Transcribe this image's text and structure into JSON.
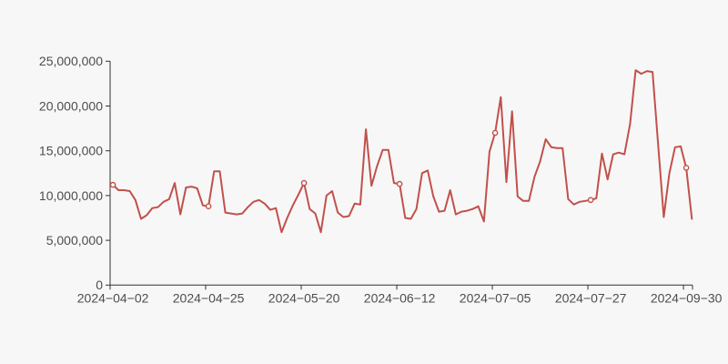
{
  "page": {
    "background_color": "#f7f7f7"
  },
  "chart_data": {
    "type": "line",
    "title": "",
    "xlabel": "",
    "ylabel": "",
    "legend": false,
    "grid": false,
    "ylim": [
      0,
      25000000
    ],
    "y_ticks": [
      0,
      5000000,
      10000000,
      15000000,
      20000000,
      25000000
    ],
    "y_tick_labels": [
      "0",
      "5,000,000",
      "10,000,000",
      "15,000,000",
      "20,000,000",
      "25,000,000"
    ],
    "x_tick_labels": [
      "2024−04−02",
      "2024−04−25",
      "2024−05−20",
      "2024−06−12",
      "2024−07−05",
      "2024−07−27",
      "2024−09−30"
    ],
    "x_tick_indices": [
      0,
      17,
      34,
      51,
      68,
      85,
      102
    ],
    "marker_indices": [
      0,
      17,
      34,
      51,
      68,
      85,
      102
    ],
    "line_color": "#c2504b",
    "marker_fill": "#ffffff",
    "axis_color": "#333333",
    "label_color": "#4d4d4d",
    "values": [
      11200000,
      10600000,
      10600000,
      10500000,
      9500000,
      7400000,
      7800000,
      8600000,
      8700000,
      9300000,
      9600000,
      11400000,
      7900000,
      10900000,
      11000000,
      10800000,
      8900000,
      8800000,
      12700000,
      12700000,
      8100000,
      8000000,
      7900000,
      8000000,
      8700000,
      9300000,
      9500000,
      9100000,
      8400000,
      8600000,
      5900000,
      7500000,
      8900000,
      10100000,
      11400000,
      8500000,
      8000000,
      5900000,
      10000000,
      10500000,
      8100000,
      7600000,
      7700000,
      9100000,
      9000000,
      17400000,
      11100000,
      13300000,
      15100000,
      15100000,
      11400000,
      11300000,
      7500000,
      7400000,
      8500000,
      12500000,
      12800000,
      9900000,
      8200000,
      8300000,
      10600000,
      7900000,
      8200000,
      8300000,
      8500000,
      8800000,
      7100000,
      14900000,
      17000000,
      21000000,
      11500000,
      19400000,
      9900000,
      9400000,
      9400000,
      12100000,
      13800000,
      16300000,
      15400000,
      15300000,
      15300000,
      9600000,
      9000000,
      9300000,
      9400000,
      9500000,
      9700000,
      14700000,
      11800000,
      14600000,
      14800000,
      14600000,
      18000000,
      24000000,
      23600000,
      23900000,
      23800000,
      15600000,
      7600000,
      12500000,
      15400000,
      15500000,
      13100000,
      7400000
    ]
  }
}
